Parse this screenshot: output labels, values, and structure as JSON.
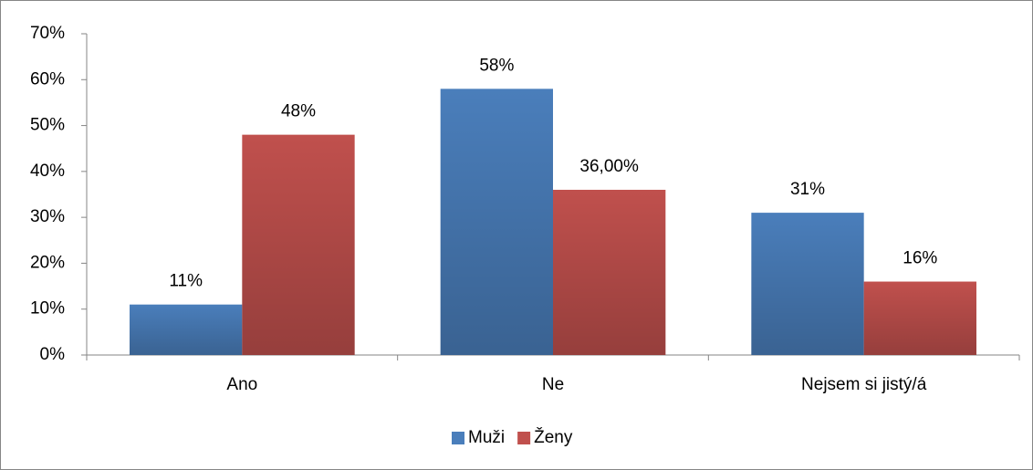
{
  "chart_data": {
    "type": "bar",
    "categories": [
      "Ano",
      "Ne",
      "Nejsem si jistý/á"
    ],
    "series": [
      {
        "name": "Muži",
        "color": "#4a7ebb",
        "values": [
          11,
          58,
          31
        ],
        "value_labels": [
          "11%",
          "58%",
          "31%"
        ]
      },
      {
        "name": "Ženy",
        "color": "#c0504d",
        "values": [
          48,
          36,
          16
        ],
        "value_labels": [
          "48%",
          "36,00%",
          "16%"
        ]
      }
    ],
    "ylim": [
      0,
      70
    ],
    "yticks": [
      {
        "value": 0,
        "label": "0%"
      },
      {
        "value": 10,
        "label": "10%"
      },
      {
        "value": 20,
        "label": "20%"
      },
      {
        "value": 30,
        "label": "30%"
      },
      {
        "value": 40,
        "label": "40%"
      },
      {
        "value": 50,
        "label": "50%"
      },
      {
        "value": 60,
        "label": "60%"
      },
      {
        "value": 70,
        "label": "70%"
      }
    ],
    "grid": false,
    "legend": "bottom"
  }
}
